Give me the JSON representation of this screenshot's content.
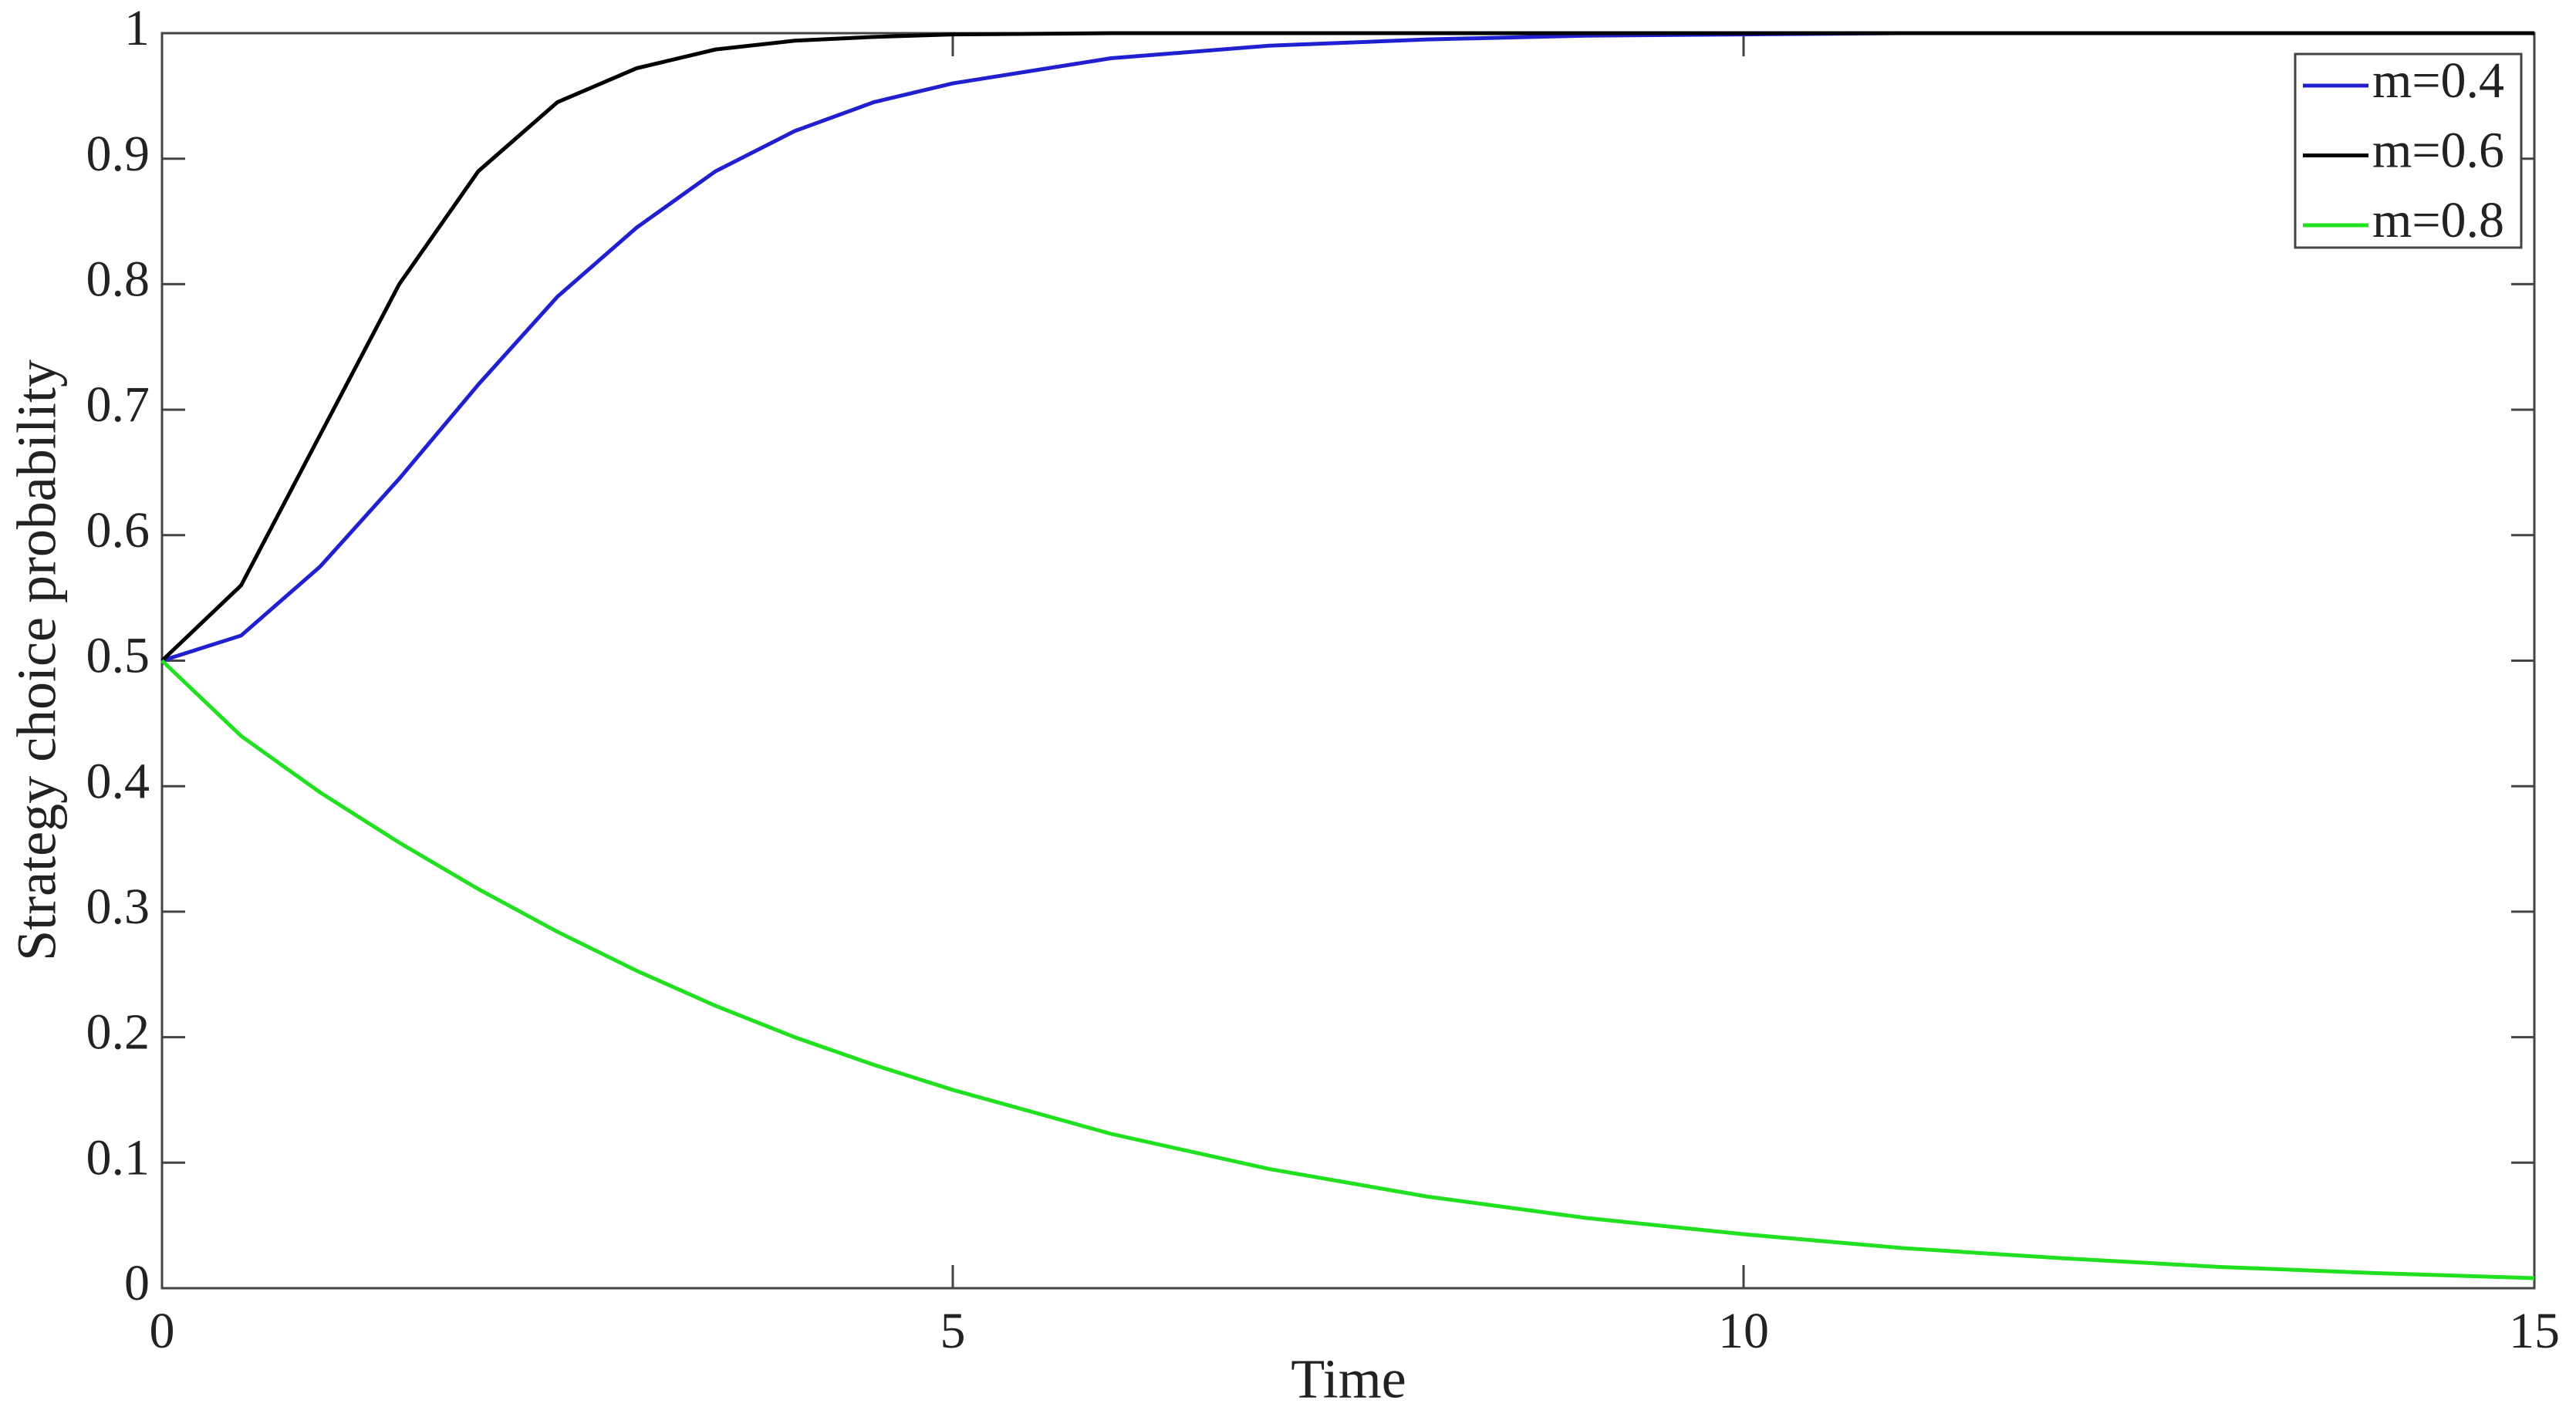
{
  "chart_data": {
    "type": "line",
    "x_label": "Time",
    "y_label": "Strategy choice probability",
    "x": [
      0,
      0.5,
      1,
      1.5,
      2,
      2.5,
      3,
      3.5,
      4,
      4.5,
      5,
      6,
      7,
      8,
      9,
      10,
      11,
      12,
      13,
      14,
      15
    ],
    "series": [
      {
        "name": "m=0.4",
        "color": "#2020d0",
        "values": [
          0.5,
          0.52,
          0.575,
          0.645,
          0.72,
          0.79,
          0.845,
          0.89,
          0.922,
          0.945,
          0.96,
          0.98,
          0.99,
          0.995,
          0.998,
          0.999,
          1,
          1,
          1,
          1,
          1
        ]
      },
      {
        "name": "m=0.6",
        "color": "#000000",
        "values": [
          0.5,
          0.56,
          0.68,
          0.8,
          0.89,
          0.945,
          0.972,
          0.987,
          0.994,
          0.997,
          0.999,
          1,
          1,
          1,
          1,
          1,
          1,
          1,
          1,
          1,
          1
        ]
      },
      {
        "name": "m=0.8",
        "color": "#20e020",
        "values": [
          0.5,
          0.44,
          0.395,
          0.355,
          0.318,
          0.284,
          0.253,
          0.225,
          0.2,
          0.178,
          0.158,
          0.123,
          0.095,
          0.073,
          0.056,
          0.043,
          0.032,
          0.024,
          0.017,
          0.012,
          0.008
        ]
      }
    ],
    "xlim": [
      0,
      15
    ],
    "xticks": [
      0,
      5,
      10,
      15
    ],
    "ylim": [
      0,
      1
    ],
    "yticks": [
      0,
      0.1,
      0.2,
      0.3,
      0.4,
      0.5,
      0.6,
      0.7,
      0.8,
      0.9,
      1
    ],
    "grid": false,
    "legend": "top-right"
  }
}
